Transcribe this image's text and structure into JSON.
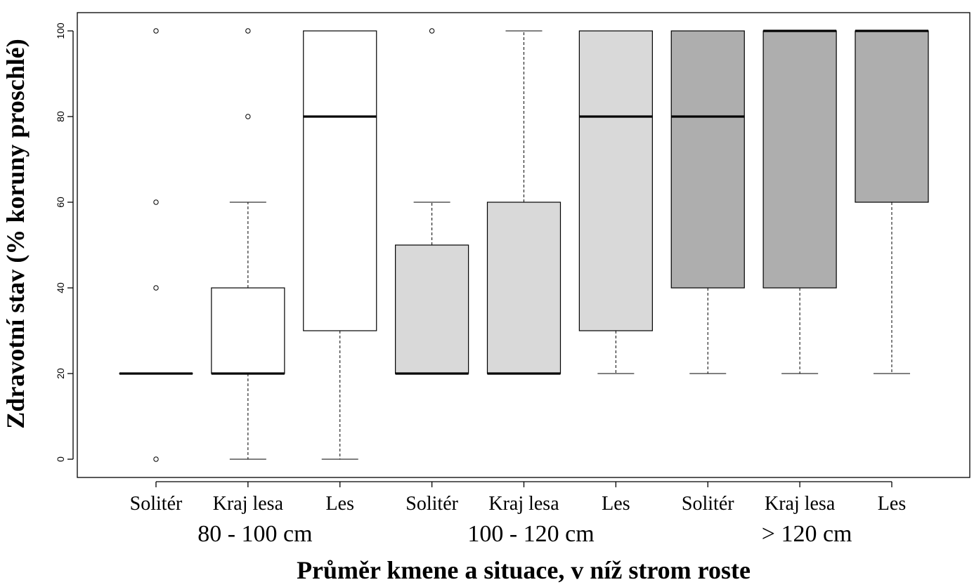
{
  "chart_data": {
    "type": "boxplot",
    "title": "",
    "ylabel": "Zdravotní stav (% koruny proschlé)",
    "xlabel": "Průměr kmene a situace, v níž strom roste",
    "ylim": [
      0,
      100
    ],
    "yticks": [
      "0",
      "20",
      "40",
      "60",
      "80",
      "100"
    ],
    "grid": false,
    "groups": [
      {
        "label": "80 - 100 cm",
        "color": "#ffffff"
      },
      {
        "label": "100 - 120 cm",
        "color": "#d9d9d9"
      },
      {
        "label": "> 120 cm",
        "color": "#aeaeae"
      }
    ],
    "boxes": [
      {
        "group": 0,
        "label": "Solitér",
        "q1": 20,
        "median": 20,
        "q3": 20,
        "whisker_low": 20,
        "whisker_high": 20,
        "outliers": [
          0,
          40,
          60,
          100
        ]
      },
      {
        "group": 0,
        "label": "Kraj lesa",
        "q1": 20,
        "median": 20,
        "q3": 40,
        "whisker_low": 0,
        "whisker_high": 60,
        "outliers": [
          80,
          100
        ]
      },
      {
        "group": 0,
        "label": "Les",
        "q1": 30,
        "median": 80,
        "q3": 100,
        "whisker_low": 0,
        "whisker_high": 100,
        "outliers": []
      },
      {
        "group": 1,
        "label": "Solitér",
        "q1": 20,
        "median": 20,
        "q3": 50,
        "whisker_low": 20,
        "whisker_high": 60,
        "outliers": [
          100
        ]
      },
      {
        "group": 1,
        "label": "Kraj lesa",
        "q1": 20,
        "median": 20,
        "q3": 60,
        "whisker_low": 20,
        "whisker_high": 100,
        "outliers": []
      },
      {
        "group": 1,
        "label": "Les",
        "q1": 30,
        "median": 80,
        "q3": 100,
        "whisker_low": 20,
        "whisker_high": 100,
        "outliers": []
      },
      {
        "group": 2,
        "label": "Solitér",
        "q1": 40,
        "median": 80,
        "q3": 100,
        "whisker_low": 20,
        "whisker_high": 100,
        "outliers": []
      },
      {
        "group": 2,
        "label": "Kraj lesa",
        "q1": 40,
        "median": 100,
        "q3": 100,
        "whisker_low": 20,
        "whisker_high": 100,
        "outliers": []
      },
      {
        "group": 2,
        "label": "Les",
        "q1": 60,
        "median": 100,
        "q3": 100,
        "whisker_low": 20,
        "whisker_high": 100,
        "outliers": []
      }
    ]
  }
}
